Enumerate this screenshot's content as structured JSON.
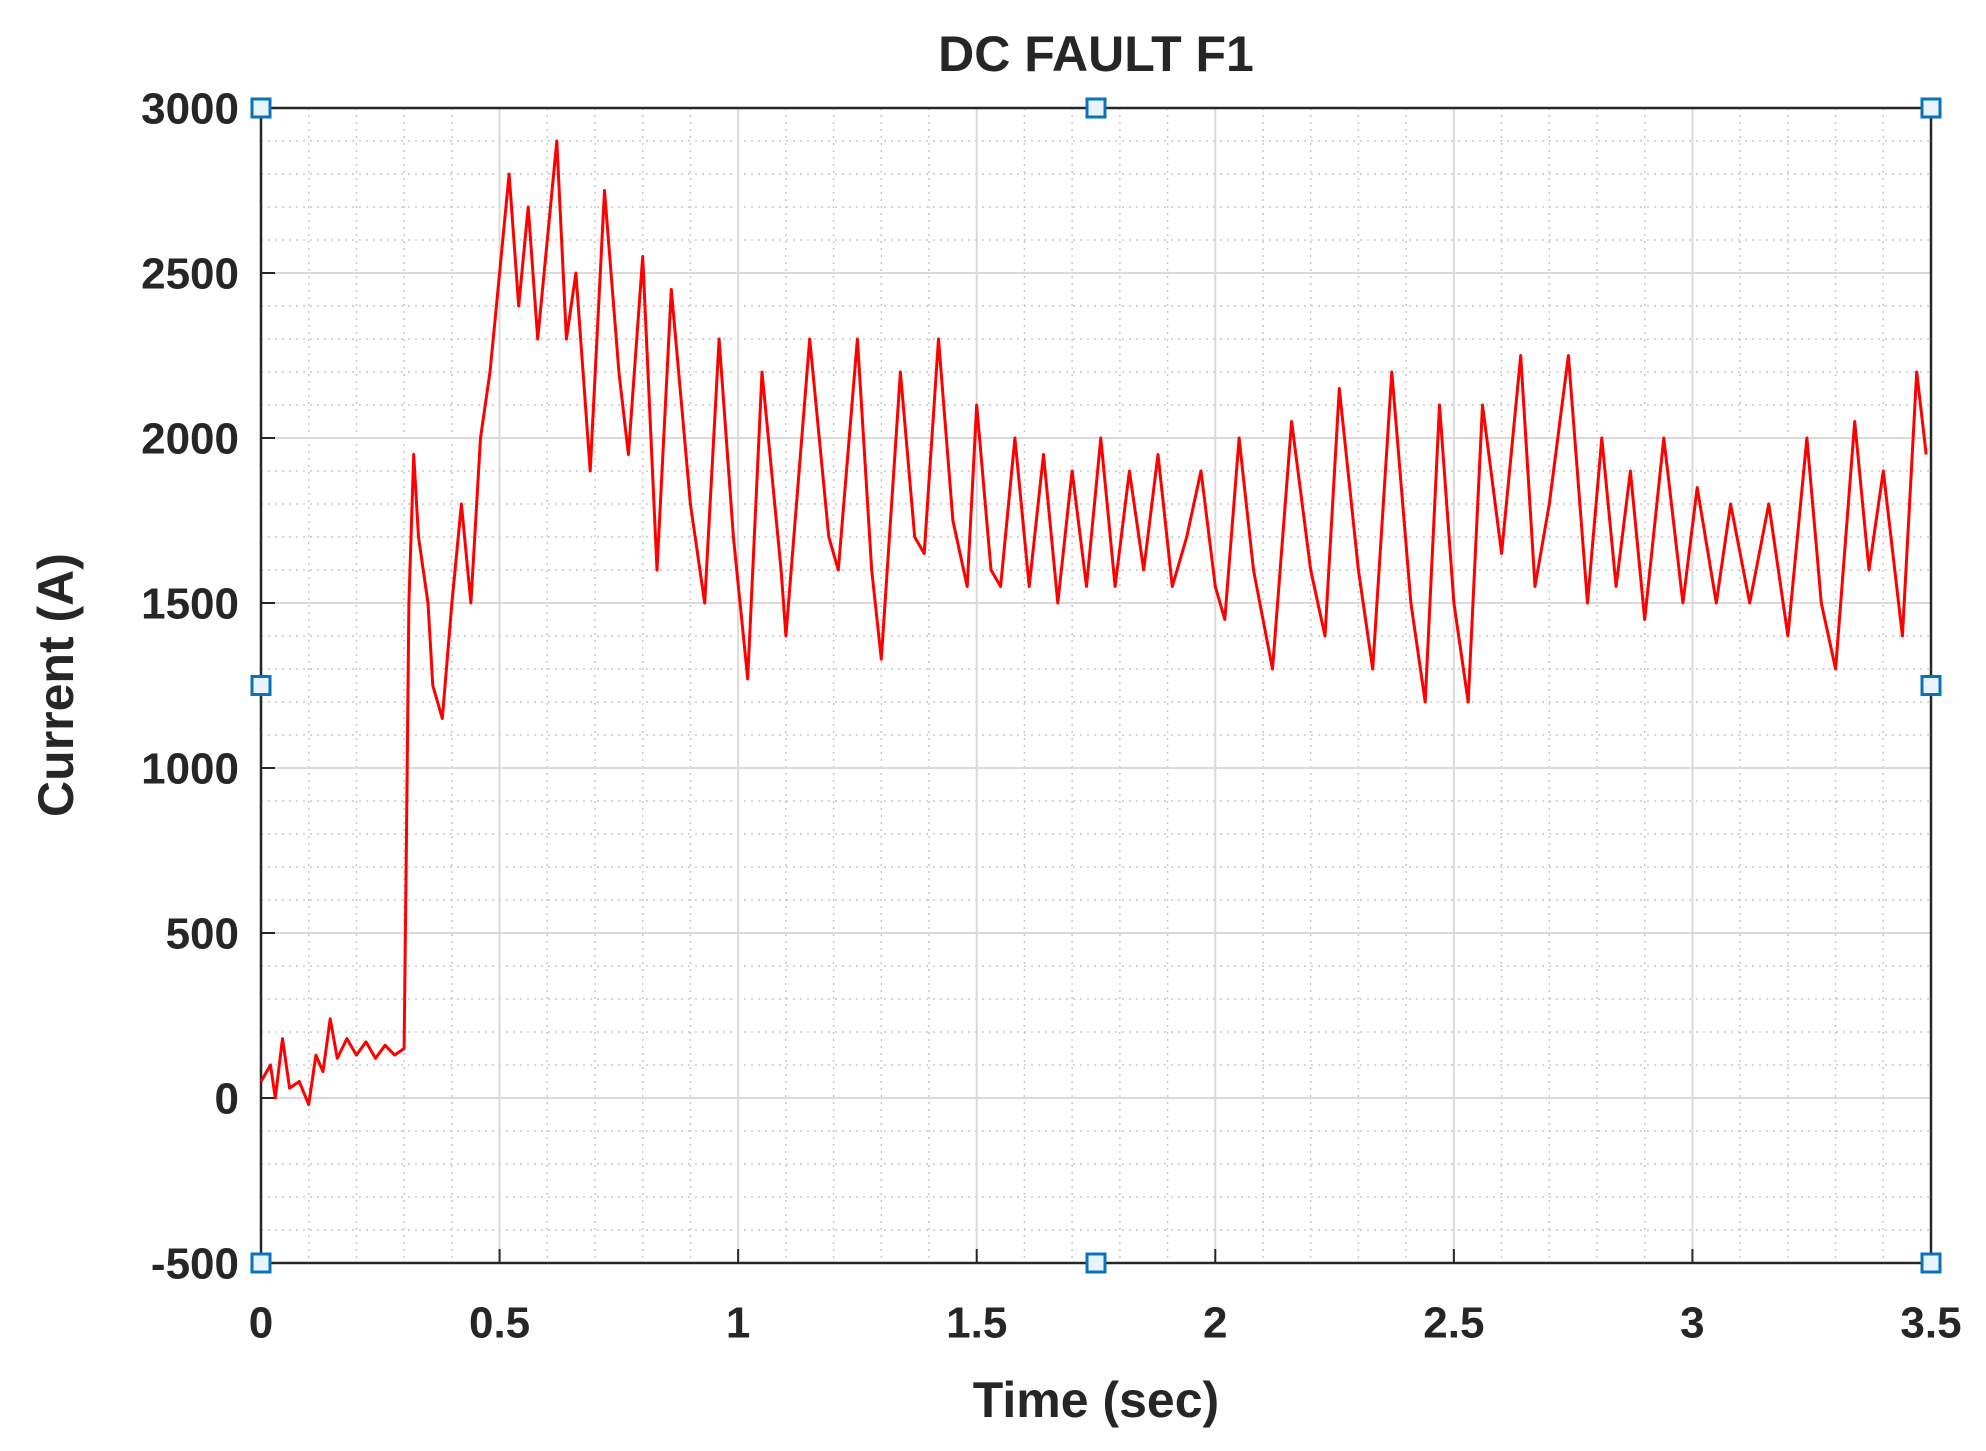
{
  "chart_data": {
    "type": "line",
    "title": "DC FAULT F1",
    "xlabel": "Time (sec)",
    "ylabel": "Current (A)",
    "x": [
      0,
      0.02,
      0.03,
      0.045,
      0.06,
      0.08,
      0.1,
      0.115,
      0.13,
      0.145,
      0.16,
      0.18,
      0.2,
      0.22,
      0.24,
      0.26,
      0.28,
      0.3,
      0.305,
      0.31,
      0.32,
      0.33,
      0.35,
      0.36,
      0.38,
      0.4,
      0.42,
      0.44,
      0.46,
      0.48,
      0.5,
      0.52,
      0.54,
      0.56,
      0.58,
      0.6,
      0.62,
      0.64,
      0.66,
      0.69,
      0.72,
      0.75,
      0.77,
      0.8,
      0.83,
      0.86,
      0.9,
      0.93,
      0.96,
      0.99,
      1.02,
      1.05,
      1.09,
      1.1,
      1.15,
      1.19,
      1.21,
      1.25,
      1.28,
      1.3,
      1.34,
      1.37,
      1.39,
      1.42,
      1.45,
      1.48,
      1.5,
      1.53,
      1.55,
      1.58,
      1.61,
      1.64,
      1.67,
      1.7,
      1.73,
      1.76,
      1.79,
      1.82,
      1.85,
      1.88,
      1.91,
      1.94,
      1.97,
      2.0,
      2.02,
      2.05,
      2.08,
      2.12,
      2.16,
      2.2,
      2.23,
      2.26,
      2.3,
      2.33,
      2.37,
      2.41,
      2.44,
      2.47,
      2.5,
      2.53,
      2.56,
      2.6,
      2.64,
      2.67,
      2.7,
      2.74,
      2.78,
      2.81,
      2.84,
      2.87,
      2.9,
      2.94,
      2.98,
      3.01,
      3.05,
      3.08,
      3.12,
      3.16,
      3.2,
      3.24,
      3.27,
      3.3,
      3.34,
      3.37,
      3.4,
      3.44,
      3.47,
      3.49
    ],
    "series": [
      {
        "name": "Current",
        "color": "#ff0000",
        "values": [
          50,
          100,
          0,
          180,
          30,
          50,
          -20,
          130,
          80,
          240,
          120,
          180,
          130,
          170,
          120,
          160,
          130,
          150,
          800,
          1500,
          1950,
          1700,
          1500,
          1250,
          1150,
          1500,
          1800,
          1500,
          2000,
          2200,
          2500,
          2800,
          2400,
          2700,
          2300,
          2600,
          2900,
          2300,
          2500,
          1900,
          2750,
          2200,
          1950,
          2550,
          1600,
          2450,
          1800,
          1500,
          2300,
          1700,
          1270,
          2200,
          1600,
          1400,
          2300,
          1700,
          1600,
          2300,
          1600,
          1330,
          2200,
          1700,
          1650,
          2300,
          1750,
          1550,
          2100,
          1600,
          1550,
          2000,
          1550,
          1950,
          1500,
          1900,
          1550,
          2000,
          1550,
          1900,
          1600,
          1950,
          1550,
          1700,
          1900,
          1550,
          1450,
          2000,
          1600,
          1300,
          2050,
          1600,
          1400,
          2150,
          1600,
          1300,
          2200,
          1500,
          1200,
          2100,
          1500,
          1200,
          2100,
          1650,
          2250,
          1550,
          1800,
          2250,
          1500,
          2000,
          1550,
          1900,
          1450,
          2000,
          1500,
          1850,
          1500,
          1800,
          1500,
          1800,
          1400,
          2000,
          1500,
          1300,
          2050,
          1600,
          1900,
          1400,
          2200,
          1950
        ]
      }
    ],
    "xlim": [
      0,
      3.5
    ],
    "xticks": [
      0,
      0.5,
      1,
      1.5,
      2,
      2.5,
      3,
      3.5
    ],
    "ylim": [
      -500,
      3000
    ],
    "yticks": [
      -500,
      0,
      500,
      1000,
      1500,
      2000,
      2500,
      3000
    ],
    "grid": true,
    "minor_grid": true
  }
}
